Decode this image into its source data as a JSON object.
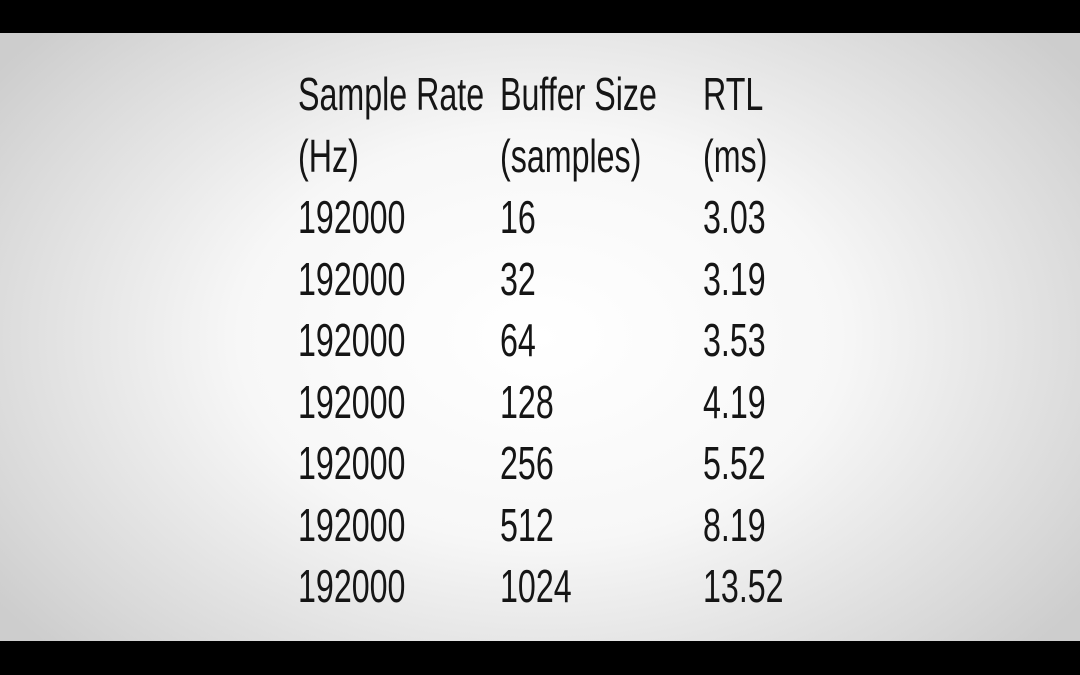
{
  "table": {
    "header": [
      [
        "Sample Rate",
        "(Hz)"
      ],
      [
        "Buffer Size",
        "(samples)"
      ],
      [
        "RTL",
        "(ms)"
      ]
    ],
    "rows": [
      [
        "192000",
        "16",
        "3.03"
      ],
      [
        "192000",
        "32",
        "3.19"
      ],
      [
        "192000",
        "64",
        "3.53"
      ],
      [
        "192000",
        "128",
        "4.19"
      ],
      [
        "192000",
        "256",
        "5.52"
      ],
      [
        "192000",
        "512",
        "8.19"
      ],
      [
        "192000",
        "1024",
        "13.52"
      ]
    ]
  }
}
